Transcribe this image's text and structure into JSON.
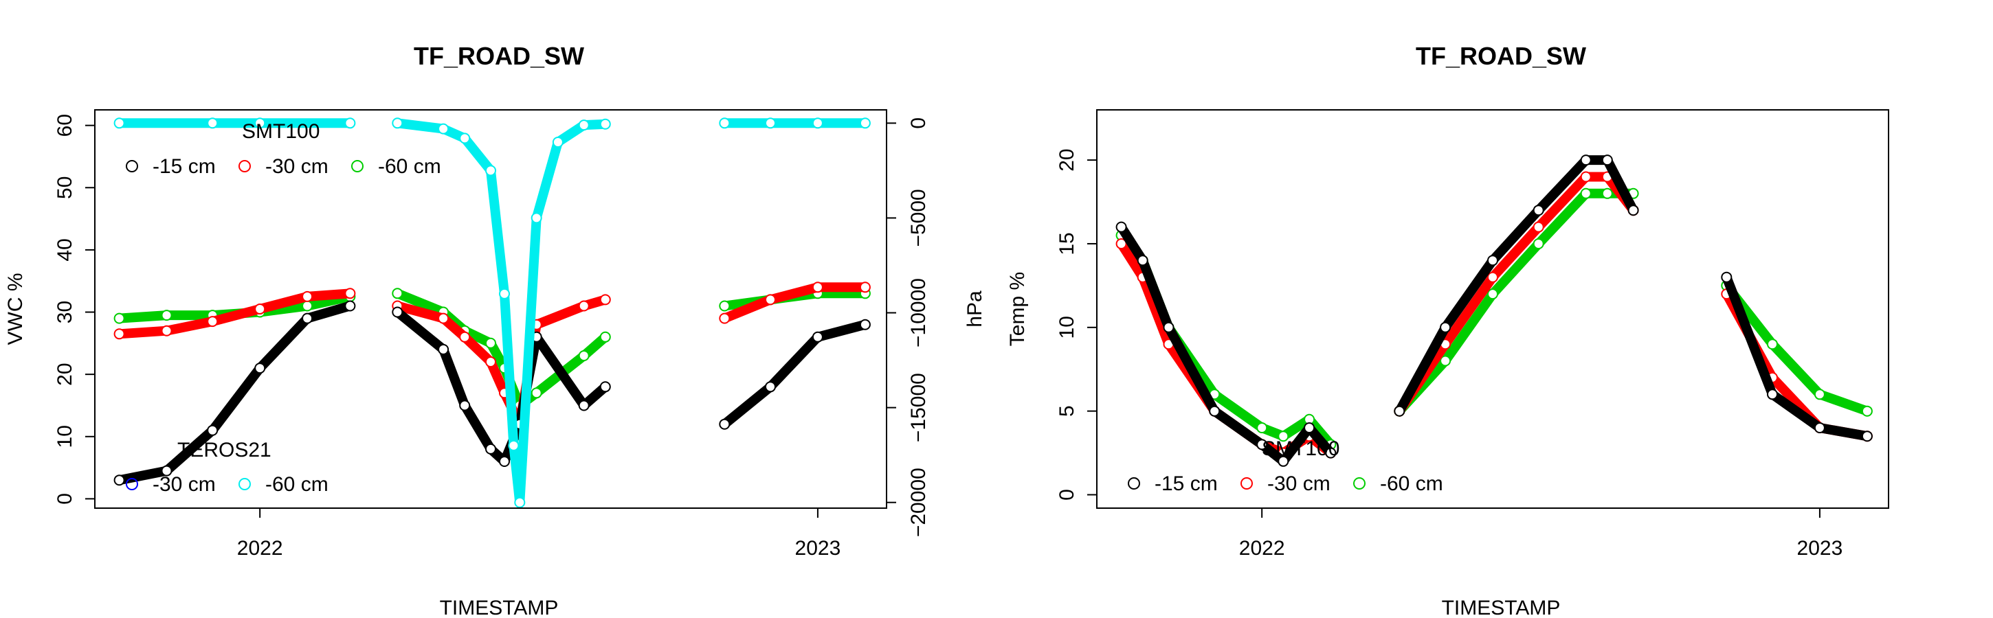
{
  "chart_data": [
    {
      "type": "scatter",
      "title": "TF_ROAD_SW",
      "xlabel": "TIMESTAMP",
      "ylabel": "VWC %",
      "y2label": "hPa",
      "x_ticks": [
        "2022",
        "2023"
      ],
      "x_range": [
        "2021-09-15",
        "2023-02-15"
      ],
      "y_ticks": [
        "0",
        "10",
        "20",
        "30",
        "40",
        "50",
        "60"
      ],
      "ylim": [
        -1.5,
        62.5
      ],
      "y2_ticks": [
        "0",
        "-5000",
        "-10000",
        "-15000",
        "-20000"
      ],
      "y2lim": [
        -20300,
        700
      ],
      "legends": [
        {
          "title": "SMT100",
          "position": "top-left",
          "entries": [
            {
              "label": "-15 cm",
              "color": "#000000"
            },
            {
              "label": "-30 cm",
              "color": "#ff0000"
            },
            {
              "label": "-60 cm",
              "color": "#00cd00"
            }
          ]
        },
        {
          "title": "TEROS21",
          "position": "bottom-left",
          "entries": [
            {
              "label": "-30 cm",
              "color": "#0000ff"
            },
            {
              "label": "-60 cm",
              "color": "#00eeee"
            }
          ]
        }
      ],
      "series": [
        {
          "axis": "left",
          "color": "#00cd00",
          "x": [
            "2021-10-01",
            "2021-11-01",
            "2021-12-01",
            "2022-01-01",
            "2022-02-01",
            "2022-03-01",
            "NA",
            "2022-04-01",
            "2022-05-01",
            "2022-05-15",
            "2022-06-01",
            "2022-06-10",
            "2022-06-20",
            "2022-07-01",
            "2022-08-01",
            "2022-08-15",
            "NA",
            "2022-11-01",
            "2022-12-01",
            "2023-01-01",
            "2023-02-01"
          ],
          "y": [
            29,
            29.5,
            29.5,
            30,
            31,
            32.5,
            null,
            33,
            30,
            27,
            25,
            21,
            15,
            17,
            23,
            26,
            null,
            31,
            32,
            33,
            33
          ]
        },
        {
          "axis": "left",
          "color": "#ff0000",
          "x": [
            "2021-10-01",
            "2021-11-01",
            "2021-12-01",
            "2022-01-01",
            "2022-02-01",
            "2022-03-01",
            "NA",
            "2022-04-01",
            "2022-05-01",
            "2022-05-15",
            "2022-06-01",
            "2022-06-10",
            "2022-06-20",
            "2022-07-01",
            "2022-08-01",
            "2022-08-15",
            "NA",
            "2022-11-01",
            "2022-12-01",
            "2023-01-01",
            "2023-02-01"
          ],
          "y": [
            26.5,
            27,
            28.5,
            30.5,
            32.5,
            33,
            null,
            31,
            29,
            26,
            22,
            17,
            12,
            28,
            31,
            32,
            null,
            29,
            32,
            34,
            34
          ]
        },
        {
          "axis": "left",
          "color": "#000000",
          "x": [
            "2021-10-01",
            "2021-11-01",
            "2021-12-01",
            "2022-01-01",
            "2022-02-01",
            "2022-03-01",
            "NA",
            "2022-04-01",
            "2022-05-01",
            "2022-05-15",
            "2022-06-01",
            "2022-06-10",
            "2022-06-20",
            "2022-07-01",
            "2022-08-01",
            "2022-08-15",
            "NA",
            "2022-11-01",
            "2022-12-01",
            "2023-01-01",
            "2023-02-01"
          ],
          "y": [
            3,
            4.5,
            11,
            21,
            29,
            31,
            null,
            30,
            24,
            15,
            8,
            6,
            12,
            26,
            15,
            18,
            null,
            12,
            18,
            26,
            28
          ]
        },
        {
          "axis": "right",
          "color": "#00eeee",
          "x": [
            "2021-10-01",
            "2021-12-01",
            "2022-01-01",
            "2022-03-01",
            "NA",
            "2022-04-01",
            "2022-05-01",
            "2022-05-15",
            "2022-06-01",
            "2022-06-10",
            "2022-06-16",
            "2022-06-20",
            "2022-07-01",
            "2022-07-15",
            "2022-08-01",
            "2022-08-15",
            "NA",
            "2022-11-01",
            "2022-12-01",
            "2023-01-01",
            "2023-02-01"
          ],
          "y": [
            0,
            0,
            0,
            0,
            null,
            0,
            -300,
            -800,
            -2500,
            -9000,
            -17000,
            -20000,
            -5000,
            -1000,
            -100,
            -50,
            null,
            0,
            0,
            0,
            0
          ]
        }
      ]
    },
    {
      "type": "scatter",
      "title": "TF_ROAD_SW",
      "xlabel": "TIMESTAMP",
      "ylabel": "Temp %",
      "x_ticks": [
        "2022",
        "2023"
      ],
      "x_range": [
        "2021-09-15",
        "2023-02-15"
      ],
      "y_ticks": [
        "0",
        "5",
        "10",
        "15",
        "20"
      ],
      "ylim": [
        -0.8,
        23
      ],
      "legends": [
        {
          "title": "SMT100",
          "position": "bottom-left",
          "entries": [
            {
              "label": "-15 cm",
              "color": "#000000"
            },
            {
              "label": "-30 cm",
              "color": "#ff0000"
            },
            {
              "label": "-60 cm",
              "color": "#00cd00"
            }
          ]
        }
      ],
      "series": [
        {
          "axis": "left",
          "color": "#00cd00",
          "x": [
            "2021-10-01",
            "2021-10-15",
            "2021-11-01",
            "2021-12-01",
            "2022-01-01",
            "2022-01-15",
            "2022-02-01",
            "2022-02-15",
            "NA",
            "2022-04-01",
            "2022-05-01",
            "2022-06-01",
            "2022-07-01",
            "2022-08-01",
            "2022-08-15",
            "2022-09-01",
            "NA",
            "2022-11-01",
            "2022-12-01",
            "2023-01-01",
            "2023-02-01"
          ],
          "y": [
            15.5,
            14,
            10,
            6,
            4,
            3.5,
            4.5,
            3,
            null,
            5,
            8,
            12,
            15,
            18,
            18,
            18,
            null,
            12.5,
            9,
            6,
            5
          ]
        },
        {
          "axis": "left",
          "color": "#ff0000",
          "x": [
            "2021-10-01",
            "2021-10-15",
            "2021-11-01",
            "2021-12-01",
            "2022-01-01",
            "2022-01-15",
            "2022-02-01",
            "2022-02-15",
            "NA",
            "2022-04-01",
            "2022-05-01",
            "2022-06-01",
            "2022-07-01",
            "2022-08-01",
            "2022-08-15",
            "2022-09-01",
            "NA",
            "2022-11-01",
            "2022-12-01",
            "2023-01-01",
            "2023-02-01"
          ],
          "y": [
            15,
            13,
            9,
            5,
            3,
            2.5,
            3.5,
            2.5,
            null,
            5,
            9,
            13,
            16,
            19,
            19,
            17,
            null,
            12,
            7,
            4,
            3.5
          ]
        },
        {
          "axis": "left",
          "color": "#000000",
          "x": [
            "2021-10-01",
            "2021-10-15",
            "2021-11-01",
            "2021-12-01",
            "2022-01-01",
            "2022-01-15",
            "2022-02-01",
            "2022-02-15",
            "NA",
            "2022-04-01",
            "2022-05-01",
            "2022-06-01",
            "2022-07-01",
            "2022-08-01",
            "2022-08-15",
            "2022-09-01",
            "NA",
            "2022-11-01",
            "2022-12-01",
            "2023-01-01",
            "2023-02-01"
          ],
          "y": [
            16,
            14,
            10,
            5,
            3,
            2,
            4,
            2.5,
            null,
            5,
            10,
            14,
            17,
            20,
            20,
            17,
            null,
            13,
            6,
            4,
            3.5
          ]
        }
      ]
    }
  ]
}
